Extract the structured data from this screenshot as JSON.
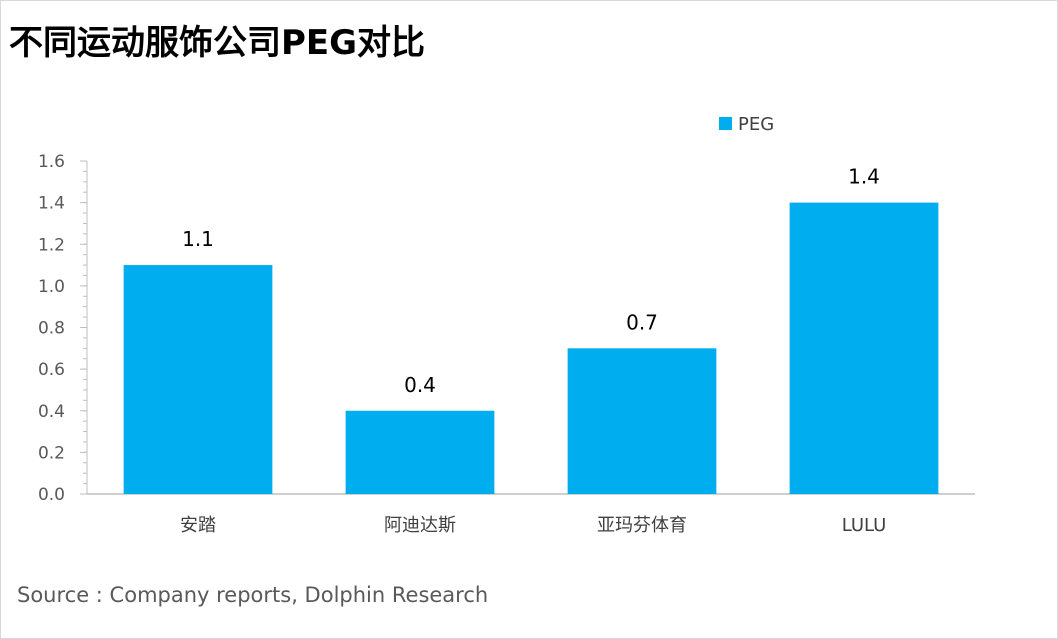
{
  "title": "不同运动服饰公司PEG对比",
  "source": "Source : Company reports, Dolphin Research",
  "colors": {
    "bar": "#00AEEF",
    "axis": "#bfbfbf"
  },
  "chart_data": {
    "type": "bar",
    "title": "不同运动服饰公司PEG对比",
    "xlabel": "",
    "ylabel": "",
    "categories": [
      "安踏",
      "阿迪达斯",
      "亚玛芬体育",
      "LULU"
    ],
    "series": [
      {
        "name": "PEG",
        "values": [
          1.1,
          0.4,
          0.7,
          1.4
        ]
      }
    ],
    "data_labels": [
      "1.1",
      "0.4",
      "0.7",
      "1.4"
    ],
    "ylim": [
      0,
      1.6
    ],
    "y_ticks": [
      "0.0",
      "0.2",
      "0.4",
      "0.6",
      "0.8",
      "1.0",
      "1.2",
      "1.4",
      "1.6"
    ],
    "grid": false,
    "legend_position": "top-right"
  }
}
